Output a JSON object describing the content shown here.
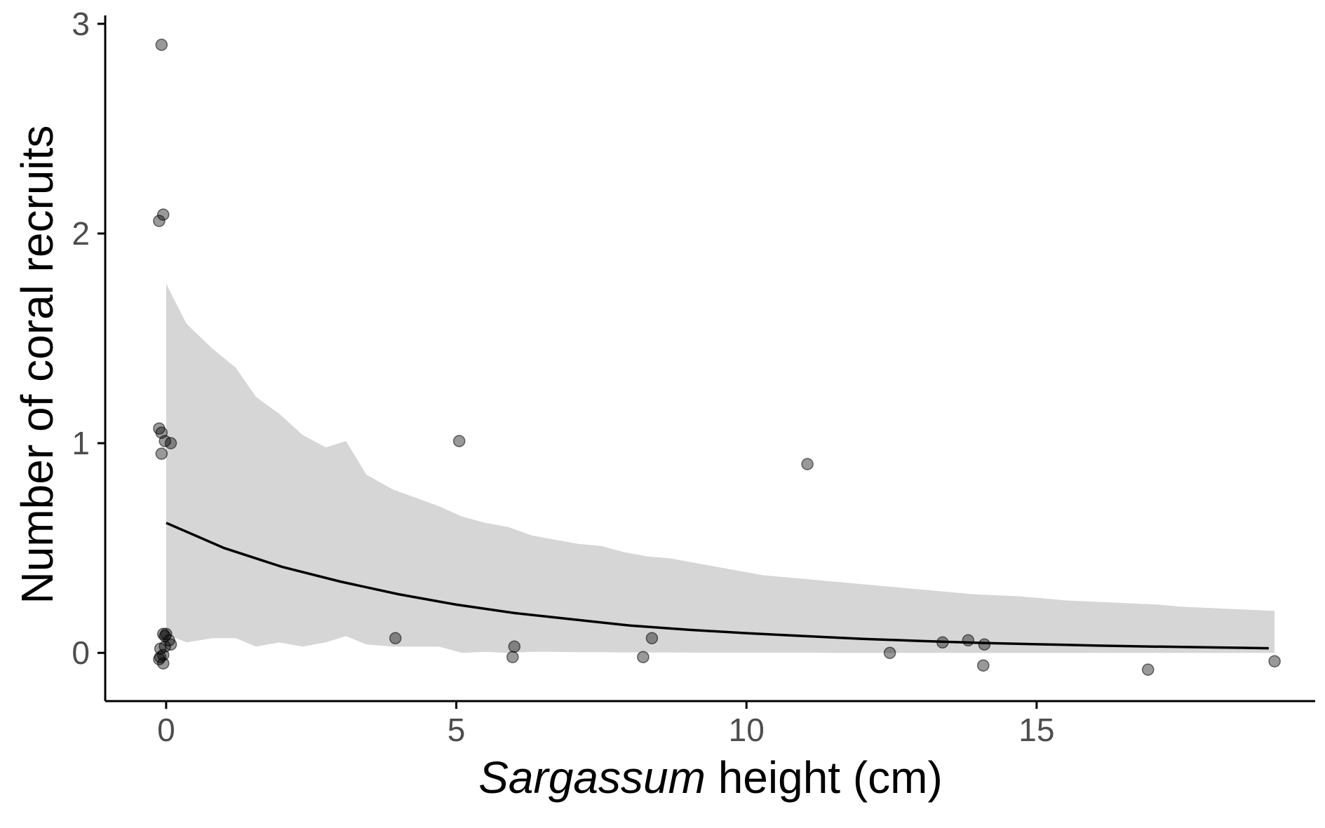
{
  "chart_data": {
    "type": "scatter",
    "xlabel_italic": "Sargassum",
    "xlabel_rest": " height (cm)",
    "ylabel": "Number of coral recruits",
    "xlim": [
      -1.05,
      19.8
    ],
    "ylim": [
      -0.23,
      3.04
    ],
    "x_ticks": [
      0,
      5,
      10,
      15
    ],
    "x_tick_labels": [
      "0",
      "5",
      "10",
      "15"
    ],
    "y_ticks": [
      0,
      1,
      2,
      3
    ],
    "y_tick_labels": [
      "0",
      "1",
      "2",
      "3"
    ],
    "grid": false,
    "legend": "none",
    "colors": {
      "points": "#000000",
      "point_opacity": 0.4,
      "fit_line": "#000000",
      "ribbon": "#d6d6d6",
      "axis": "#000000",
      "tick_text": "#4d4d4d"
    },
    "series": [
      {
        "type": "scatter",
        "points": [
          [
            -0.08,
            2.9
          ],
          [
            -0.05,
            2.09
          ],
          [
            -0.12,
            2.06
          ],
          [
            -0.12,
            1.07
          ],
          [
            -0.08,
            1.05
          ],
          [
            -0.02,
            1.01
          ],
          [
            0.08,
            1.0
          ],
          [
            -0.08,
            0.95
          ],
          [
            -0.05,
            0.09
          ],
          [
            0.0,
            0.09
          ],
          [
            -0.02,
            0.08
          ],
          [
            0.05,
            0.06
          ],
          [
            0.08,
            0.04
          ],
          [
            -0.1,
            0.02
          ],
          [
            -0.02,
            0.03
          ],
          [
            -0.1,
            -0.02
          ],
          [
            -0.05,
            -0.01
          ],
          [
            -0.12,
            -0.03
          ],
          [
            -0.05,
            -0.05
          ],
          [
            3.95,
            0.07
          ],
          [
            5.05,
            1.01
          ],
          [
            6.0,
            0.03
          ],
          [
            5.97,
            -0.02
          ],
          [
            8.22,
            -0.02
          ],
          [
            8.37,
            0.07
          ],
          [
            11.05,
            0.9
          ],
          [
            12.47,
            0.0
          ],
          [
            13.38,
            0.05
          ],
          [
            13.82,
            0.06
          ],
          [
            14.1,
            0.04
          ],
          [
            14.08,
            -0.06
          ],
          [
            16.92,
            -0.08
          ],
          [
            19.1,
            -0.04
          ]
        ]
      },
      {
        "type": "line",
        "x": [
          0,
          1,
          2,
          3,
          4,
          5,
          6,
          7,
          8,
          9,
          10,
          11,
          12,
          13,
          14,
          15,
          16,
          17,
          18,
          19
        ],
        "y": [
          0.62,
          0.5,
          0.41,
          0.34,
          0.28,
          0.23,
          0.19,
          0.16,
          0.13,
          0.11,
          0.094,
          0.08,
          0.067,
          0.057,
          0.048,
          0.041,
          0.035,
          0.03,
          0.026,
          0.022
        ]
      },
      {
        "type": "ribbon",
        "x": [
          0,
          0.35,
          0.8,
          1.2,
          1.55,
          1.95,
          2.35,
          2.75,
          3.1,
          3.45,
          3.9,
          4.3,
          4.7,
          5.1,
          5.5,
          5.9,
          6.3,
          6.7,
          7.1,
          7.5,
          7.9,
          8.3,
          8.7,
          9.1,
          9.5,
          9.9,
          10.3,
          10.7,
          11.1,
          11.5,
          11.9,
          12.3,
          12.7,
          13.1,
          13.5,
          13.9,
          14.3,
          14.7,
          15.1,
          15.5,
          15.9,
          16.3,
          16.7,
          17.1,
          17.5,
          17.9,
          18.3,
          18.7,
          19.1
        ],
        "upper": [
          1.76,
          1.57,
          1.45,
          1.36,
          1.22,
          1.14,
          1.04,
          0.98,
          1.01,
          0.85,
          0.78,
          0.74,
          0.7,
          0.65,
          0.62,
          0.6,
          0.56,
          0.54,
          0.52,
          0.51,
          0.48,
          0.46,
          0.45,
          0.43,
          0.41,
          0.39,
          0.37,
          0.36,
          0.35,
          0.34,
          0.33,
          0.32,
          0.31,
          0.3,
          0.29,
          0.28,
          0.275,
          0.27,
          0.26,
          0.25,
          0.245,
          0.24,
          0.235,
          0.23,
          0.22,
          0.215,
          0.21,
          0.205,
          0.2
        ],
        "lower": [
          0.09,
          0.05,
          0.07,
          0.07,
          0.03,
          0.05,
          0.03,
          0.05,
          0.08,
          0.04,
          0.03,
          0.03,
          0.03,
          0.0,
          0.005,
          0.0,
          0.005,
          0.005,
          0.003,
          0.003,
          0.002,
          0.002,
          0.002,
          0.001,
          0.001,
          0.001,
          0.001,
          0.001,
          0.001,
          0.0,
          0.0,
          0.0,
          0.0,
          0.0,
          0.0,
          0.0,
          0.0,
          0.0,
          0.0,
          0.0,
          0.0,
          0.0,
          0.0,
          0.0,
          0.0,
          0.0,
          0.0,
          0.0,
          0.0
        ]
      }
    ]
  }
}
